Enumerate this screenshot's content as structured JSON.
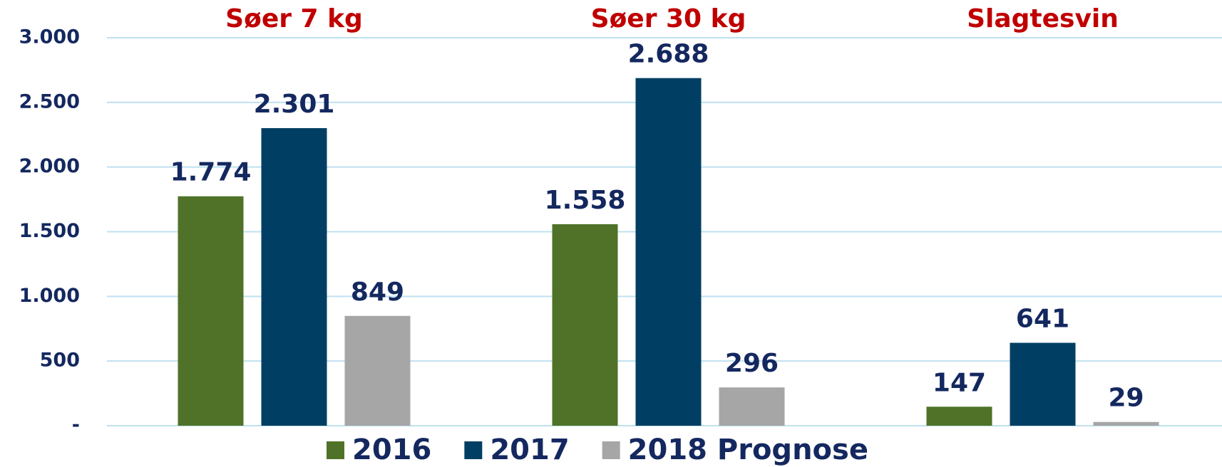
{
  "chart_data": {
    "type": "bar",
    "categories": [
      "Søer 7 kg",
      "Søer 30 kg",
      "Slagtesvin"
    ],
    "category_color": "#c00000",
    "series": [
      {
        "name": "2016",
        "color": "#4f7228",
        "values": [
          1774,
          1558,
          147
        ],
        "value_labels": [
          "1.774",
          "1.558",
          "147"
        ]
      },
      {
        "name": "2017",
        "color": "#003f63",
        "values": [
          2301,
          2688,
          641
        ],
        "value_labels": [
          "2.301",
          "2.688",
          "641"
        ]
      },
      {
        "name": "2018 Prognose",
        "color": "#a6a6a6",
        "values": [
          849,
          296,
          29
        ],
        "value_labels": [
          "849",
          "296",
          "29"
        ]
      }
    ],
    "ylim": [
      0,
      3000
    ],
    "yticks": [
      {
        "value": 0,
        "label": "-"
      },
      500,
      {
        "value": 1000,
        "label": "1.000"
      },
      {
        "value": 1500,
        "label": "1.500"
      },
      {
        "value": 2000,
        "label": "2.000"
      },
      {
        "value": 2500,
        "label": "2.500"
      },
      {
        "value": 3000,
        "label": "3.000"
      }
    ],
    "grid": true,
    "legend": "bottom"
  }
}
